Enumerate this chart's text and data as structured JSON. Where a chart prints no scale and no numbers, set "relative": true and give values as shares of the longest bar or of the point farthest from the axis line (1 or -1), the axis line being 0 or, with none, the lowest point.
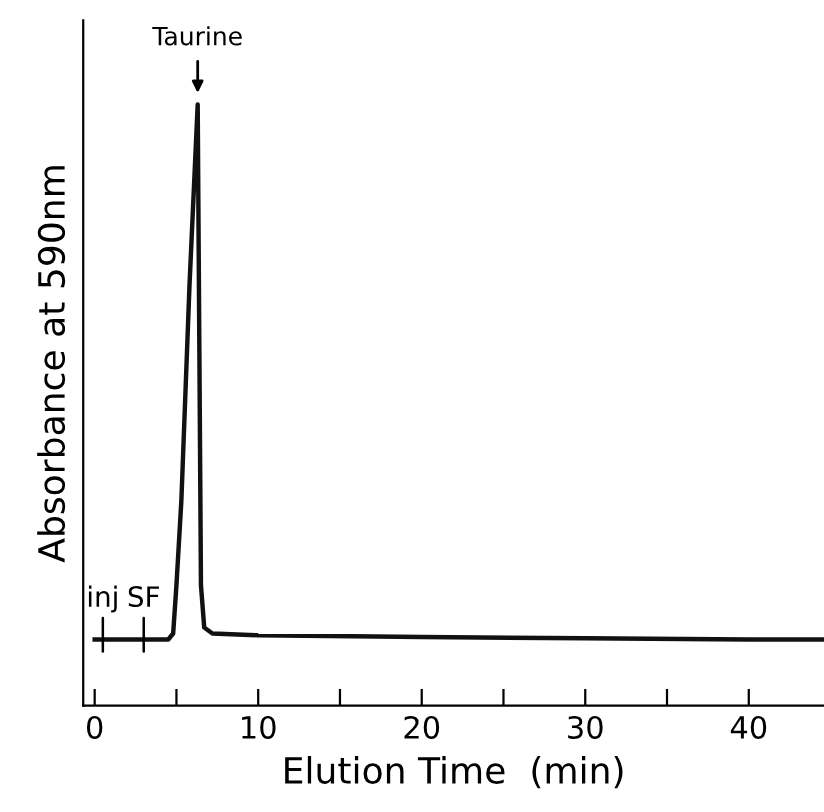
{
  "chart_data": {
    "type": "line",
    "relative": true,
    "xlabel": "Elution Time  (min)",
    "ylabel": "Absorbance at 590nm",
    "color": "#111111",
    "x": [
      0,
      4.5,
      4.8,
      5.0,
      5.3,
      5.8,
      6.3,
      6.4,
      6.5,
      6.7,
      7.2,
      10,
      20,
      30,
      40,
      44.5
    ],
    "values": [
      0.11,
      0.11,
      0.12,
      0.2,
      0.34,
      0.7,
      1.0,
      0.6,
      0.2,
      0.13,
      0.12,
      0.117,
      0.114,
      0.112,
      0.11,
      0.11
    ],
    "xlim": [
      -0.7,
      44.6
    ],
    "xticks": [
      0,
      {
        "value": 5,
        "label": null
      },
      10,
      {
        "value": 15,
        "label": null
      },
      20,
      {
        "value": 25,
        "label": null
      },
      30,
      {
        "value": 35,
        "label": null
      },
      40
    ],
    "annotations": [
      {
        "text": "Taurine",
        "x": 6.3,
        "y": 1.0
      },
      {
        "text": "inj",
        "x": 0.5,
        "y": 0.11
      },
      {
        "text": "SF",
        "x": 3,
        "y": 0.11
      }
    ],
    "grid": false,
    "legend": false,
    "marker": "none",
    "line_style": "solid"
  }
}
